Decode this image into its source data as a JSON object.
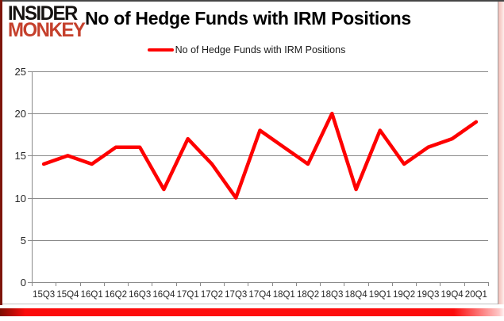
{
  "logo": {
    "line1": "INSIDER",
    "line2": "MONKEY"
  },
  "header": {
    "title": "No of Hedge Funds with IRM Positions"
  },
  "legend": {
    "label": "No of Hedge Funds with IRM Positions"
  },
  "colors": {
    "series_red": "#fe0000",
    "grid_gray": "#8a8a8a",
    "axis_label": "#262626",
    "logo_black": "#161311",
    "logo_red": "#c5402c",
    "bottom_bar_red": "#fb0b0b",
    "left_border_maroon": "#7e150b"
  },
  "chart_data": {
    "type": "line",
    "title": "No of Hedge Funds with IRM Positions",
    "categories": [
      "15Q3",
      "15Q4",
      "16Q1",
      "16Q2",
      "16Q3",
      "16Q4",
      "17Q1",
      "17Q2",
      "17Q3",
      "17Q4",
      "18Q1",
      "18Q2",
      "18Q3",
      "18Q4",
      "19Q1",
      "19Q2",
      "19Q3",
      "19Q4",
      "20Q1"
    ],
    "series": [
      {
        "name": "No of Hedge Funds with IRM Positions",
        "color": "#fe0000",
        "values": [
          14,
          15,
          14,
          16,
          16,
          11,
          17,
          14,
          10,
          18,
          16,
          14,
          20,
          11,
          18,
          14,
          16,
          17,
          19
        ]
      }
    ],
    "xlabel": "",
    "ylabel": "",
    "ylim": [
      0,
      25
    ],
    "yticks": [
      0,
      5,
      10,
      15,
      20,
      25
    ],
    "grid": true,
    "legend_position": "top-center",
    "markers": false
  }
}
